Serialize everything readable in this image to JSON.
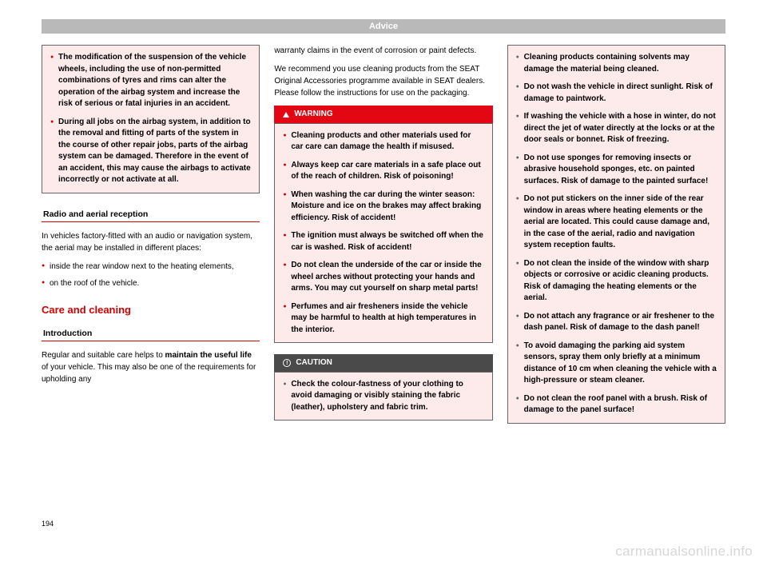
{
  "header": "Advice",
  "pageNumber": "194",
  "watermark": "carmanualsonline.info",
  "col1": {
    "box1": {
      "b1": "The modification of the suspension of the vehicle wheels, including the use of non-permitted combinations of tyres and rims can alter the operation of the airbag system and increase the risk of serious or fatal injuries in an accident.",
      "b2": "During all jobs on the airbag system, in addition to the removal and fitting of parts of the system in the course of other repair jobs, parts of the airbag system can be damaged. Therefore in the event of an accident, this may cause the airbags to activate incorrectly or not activate at all."
    },
    "sec1": "Radio and aerial reception",
    "p1": "In vehicles factory-fitted with an audio or navigation system, the aerial may be installed in different places:",
    "b1": "inside the rear window next to the heating elements,",
    "b2": "on the roof of the vehicle.",
    "mainTitle": "Care and cleaning",
    "sec2": "Introduction",
    "p2a": "Regular and suitable care helps to ",
    "p2b": "maintain the useful life",
    "p2c": " of your vehicle. This may also be one of the requirements for upholding any"
  },
  "col2": {
    "p1": "warranty claims in the event of corrosion or paint defects.",
    "p2": "We recommend you use cleaning products from the SEAT Original Accessories programme available in SEAT dealers. Please follow the instructions for use on the packaging.",
    "warnTitle": "WARNING",
    "warn": {
      "b1": "Cleaning products and other materials used for car care can damage the health if misused.",
      "b2": "Always keep car care materials in a safe place out of the reach of children. Risk of poisoning!",
      "b3": "When washing the car during the winter season: Moisture and ice on the brakes may affect braking efficiency. Risk of accident!",
      "b4": "The ignition must always be switched off when the car is washed. Risk of accident!",
      "b5": "Do not clean the underside of the car or inside the wheel arches without protecting your hands and arms. You may cut yourself on sharp metal parts!",
      "b6": "Perfumes and air fresheners inside the vehicle may be harmful to health at high temperatures in the interior."
    },
    "cautionTitle": "CAUTION",
    "caution": {
      "b1": "Check the colour-fastness of your clothing to avoid damaging or visibly staining the fabric (leather), upholstery and fabric trim."
    }
  },
  "col3": {
    "box": {
      "b1": "Cleaning products containing solvents may damage the material being cleaned.",
      "b2": "Do not wash the vehicle in direct sunlight. Risk of damage to paintwork.",
      "b3": "If washing the vehicle with a hose in winter, do not direct the jet of water directly at the locks or at the door seals or bonnet. Risk of freezing.",
      "b4": "Do not use sponges for removing insects or abrasive household sponges, etc. on painted surfaces. Risk of damage to the painted surface!",
      "b5": "Do not put stickers on the inner side of the rear window in areas where heating elements or the aerial are located. This could cause damage and, in the case of the aerial, radio and navigation system reception faults.",
      "b6": "Do not clean the inside of the window with sharp objects or corrosive or acidic cleaning products. Risk of damaging the heating elements or the aerial.",
      "b7": "Do not attach any fragrance or air freshener to the dash panel. Risk of damage to the dash panel!",
      "b8": "To avoid damaging the parking aid system sensors, spray them only briefly at a minimum distance of 10 cm when cleaning the vehicle with a high-pressure or steam cleaner.",
      "b9": "Do not clean the roof panel with a brush. Risk of damage to the panel surface!"
    }
  }
}
